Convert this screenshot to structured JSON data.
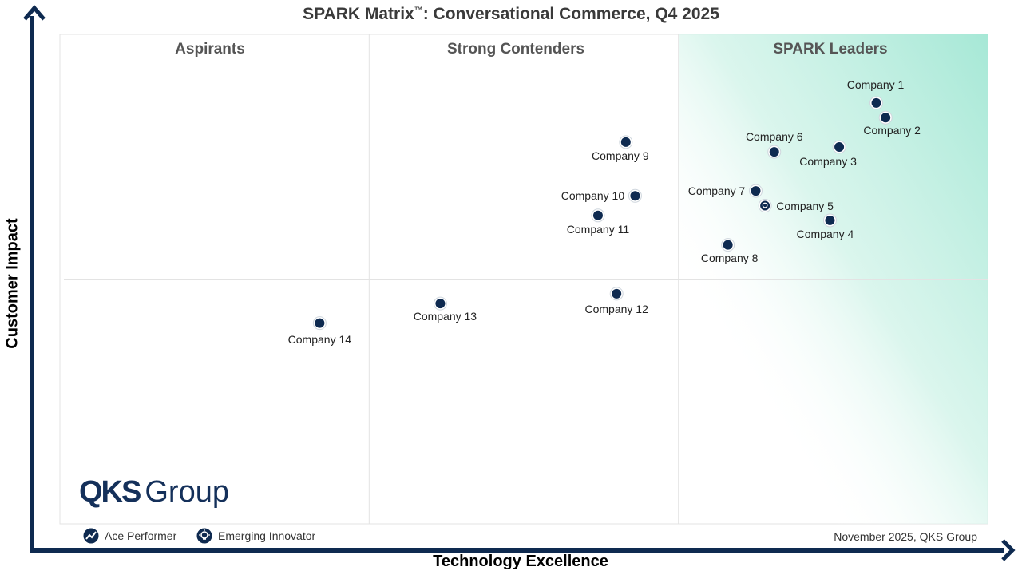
{
  "title_main": "SPARK Matrix",
  "title_tm": "™",
  "title_rest": ": Conversational Commerce, Q4 2025",
  "chart_data": {
    "type": "scatter",
    "title": "SPARK Matrix™: Conversational Commerce, Q4 2025",
    "xlabel": "Technology Excellence",
    "ylabel": "Customer Impact",
    "quadrants": [
      "Aspirants",
      "Strong Contenders",
      "SPARK Leaders"
    ],
    "points": [
      {
        "name": "Company 1",
        "x": 88,
        "y": 86,
        "type": "standard"
      },
      {
        "name": "Company 2",
        "x": 89,
        "y": 83,
        "type": "standard"
      },
      {
        "name": "Company 3",
        "x": 84,
        "y": 77,
        "type": "standard"
      },
      {
        "name": "Company 4",
        "x": 83,
        "y": 62,
        "type": "standard"
      },
      {
        "name": "Company 5",
        "x": 76,
        "y": 65,
        "type": "emerging-innovator"
      },
      {
        "name": "Company 6",
        "x": 77,
        "y": 76,
        "type": "standard"
      },
      {
        "name": "Company 7",
        "x": 75,
        "y": 68,
        "type": "standard"
      },
      {
        "name": "Company 8",
        "x": 72,
        "y": 57,
        "type": "standard"
      },
      {
        "name": "Company 9",
        "x": 61,
        "y": 78,
        "type": "standard"
      },
      {
        "name": "Company 10",
        "x": 62,
        "y": 67,
        "type": "standard"
      },
      {
        "name": "Company 11",
        "x": 58,
        "y": 63,
        "type": "standard"
      },
      {
        "name": "Company 12",
        "x": 60,
        "y": 47,
        "type": "standard"
      },
      {
        "name": "Company 13",
        "x": 41,
        "y": 45,
        "type": "standard"
      },
      {
        "name": "Company 14",
        "x": 28,
        "y": 41,
        "type": "standard"
      }
    ],
    "legend": [
      {
        "label": "Ace Performer",
        "icon": "ace-performer-icon"
      },
      {
        "label": "Emerging Innovator",
        "icon": "emerging-innovator-icon"
      }
    ],
    "footnote": "November 2025, QKS Group"
  },
  "logo": {
    "bold": "QKS",
    "light": "Group"
  },
  "colors": {
    "axis": "#0e2a50",
    "marker": "#0e2a50",
    "leader_gradient": "#a6e8d6",
    "grid": "#e3e3e3",
    "logo": "#14305a"
  }
}
